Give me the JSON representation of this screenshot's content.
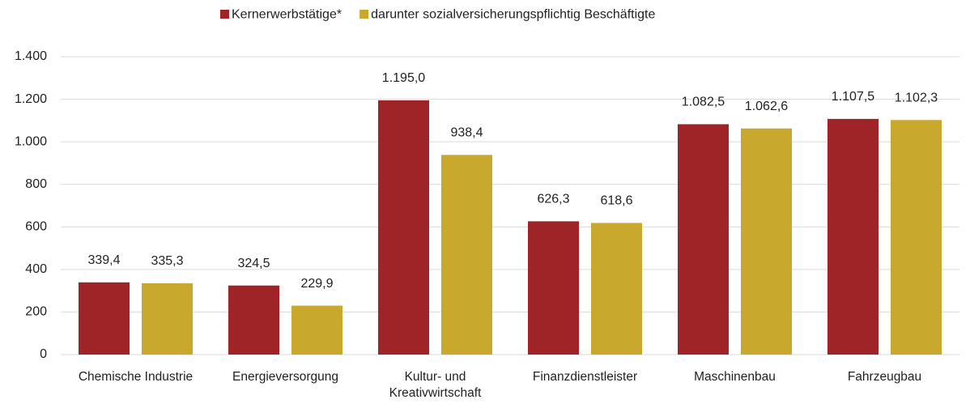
{
  "chart_data": {
    "type": "bar",
    "categories": [
      "Chemische Industrie",
      "Energieversorgung",
      "Kultur- und Kreativwirtschaft",
      "Finanzdienstleister",
      "Maschinenbau",
      "Fahrzeugbau"
    ],
    "series": [
      {
        "name": "Kernerwerbstätige*",
        "color": "#9e2427",
        "values": [
          339.4,
          324.5,
          1195.0,
          626.3,
          1082.5,
          1107.5
        ],
        "value_labels": [
          "339,4",
          "324,5",
          "1.195,0",
          "626,3",
          "1.082,5",
          "1.107,5"
        ]
      },
      {
        "name": "darunter sozialversicherungspflichtig Beschäftigte",
        "color": "#c9a82e",
        "values": [
          335.3,
          229.9,
          938.4,
          618.6,
          1062.6,
          1102.3
        ],
        "value_labels": [
          "335,3",
          "229,9",
          "938,4",
          "618,6",
          "1.062,6",
          "1.102,3"
        ]
      }
    ],
    "ylim": [
      0,
      1400
    ],
    "yticks": [
      0,
      200,
      400,
      600,
      800,
      {
        "value": 1000,
        "label": "1.000"
      },
      {
        "value": 1200,
        "label": "1.200"
      },
      {
        "value": 1400,
        "label": "1.400"
      }
    ],
    "grid": true,
    "legend": "top"
  }
}
